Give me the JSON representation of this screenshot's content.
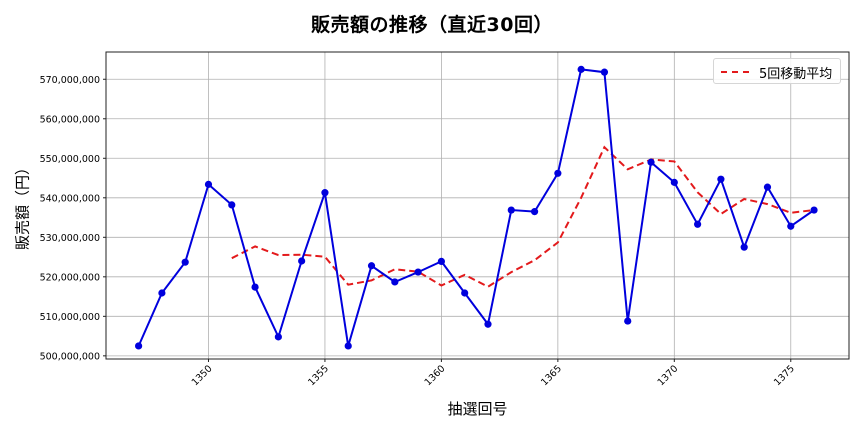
{
  "chart": {
    "title": "販売額の推移（直近30回）",
    "xlabel": "抽選回号",
    "ylabel": "販売額（円）",
    "legend_label": "5回移動平均"
  },
  "colors": {
    "series": "#0000dd",
    "moving_average": "#e31a1c",
    "grid": "#b0b0b0",
    "axis": "#222222"
  },
  "chart_data": {
    "type": "line",
    "title": "販売額の推移（直近30回）",
    "xlabel": "抽選回号",
    "ylabel": "販売額（円）",
    "x": [
      1347,
      1348,
      1349,
      1350,
      1351,
      1352,
      1353,
      1354,
      1355,
      1356,
      1357,
      1358,
      1359,
      1360,
      1361,
      1362,
      1363,
      1364,
      1365,
      1366,
      1367,
      1368,
      1369,
      1370,
      1371,
      1372,
      1373,
      1374,
      1375,
      1376
    ],
    "series": [
      {
        "name": "販売額",
        "style": "solid line with circle markers",
        "color": "#0000dd",
        "values": [
          502500000,
          515900000,
          523700000,
          543400000,
          538200000,
          517400000,
          504800000,
          524000000,
          541300000,
          502500000,
          522800000,
          518700000,
          521200000,
          523900000,
          515900000,
          508000000,
          536900000,
          536500000,
          546200000,
          572500000,
          571800000,
          508800000,
          549000000,
          543900000,
          533300000,
          544700000,
          527500000,
          542700000,
          532800000,
          536900000
        ]
      },
      {
        "name": "5回移動平均",
        "style": "dashed",
        "color": "#e31a1c",
        "values": [
          null,
          null,
          null,
          null,
          524700000,
          527700000,
          525500000,
          525600000,
          525100000,
          518000000,
          519100000,
          521900000,
          521300000,
          517800000,
          520500000,
          517500000,
          521200000,
          524200000,
          528700000,
          540000000,
          552800000,
          547200000,
          549700000,
          549200000,
          541400000,
          535900000,
          539700000,
          538400000,
          536200000,
          536900000
        ]
      }
    ],
    "x_ticks": [
      1350,
      1355,
      1360,
      1365,
      1370,
      1375
    ],
    "x_tick_labels": [
      "1350",
      "1355",
      "1360",
      "1365",
      "1370",
      "1375"
    ],
    "y_ticks": [
      500000000,
      510000000,
      520000000,
      530000000,
      540000000,
      550000000,
      560000000,
      570000000
    ],
    "y_tick_labels": [
      "500,000,000",
      "510,000,000",
      "520,000,000",
      "530,000,000",
      "540,000,000",
      "550,000,000",
      "560,000,000",
      "570,000,000"
    ],
    "xlim": [
      1345.6,
      1377.5
    ],
    "ylim": [
      499200000,
      576900000
    ],
    "grid": true,
    "legend_position": "upper right"
  }
}
